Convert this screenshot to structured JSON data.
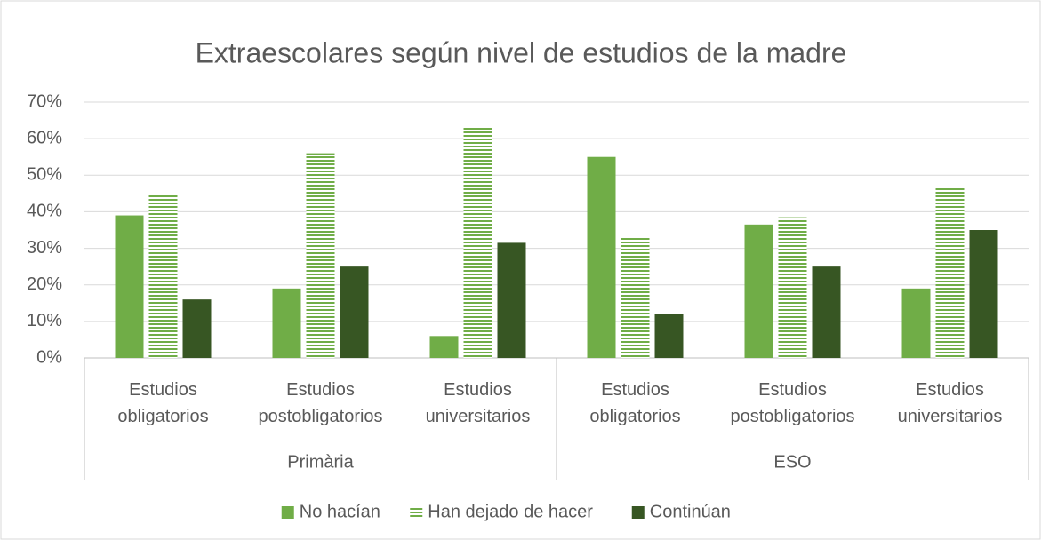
{
  "chart_data": {
    "type": "bar",
    "title": "Extraescolares según nivel de estudios de la madre",
    "categories": [
      "Estudios obligatorios",
      "Estudios postobligatorios",
      "Estudios universitarios",
      "Estudios obligatorios",
      "Estudios postobligatorios",
      "Estudios universitarios"
    ],
    "groups": [
      "Primària",
      "ESO"
    ],
    "series": [
      {
        "name": "No hacían",
        "color": "#70ad47",
        "values": [
          39,
          19,
          6,
          55,
          36.5,
          19
        ]
      },
      {
        "name": "Han dejado de hacer",
        "color": "#70ad47",
        "pattern": "horizontal-stripes",
        "values": [
          44.5,
          56,
          63,
          33,
          38.5,
          46.5
        ]
      },
      {
        "name": "Continúan",
        "color": "#375623",
        "values": [
          16,
          25,
          31.5,
          12,
          25,
          35
        ]
      }
    ],
    "ylim": [
      0,
      70
    ],
    "yticks": [
      {
        "value": 0,
        "label": "0%"
      },
      {
        "value": 10,
        "label": "10%"
      },
      {
        "value": 20,
        "label": "20%"
      },
      {
        "value": 30,
        "label": "30%"
      },
      {
        "value": 40,
        "label": "40%"
      },
      {
        "value": 50,
        "label": "50%"
      },
      {
        "value": 60,
        "label": "60%"
      },
      {
        "value": 70,
        "label": "70%"
      }
    ],
    "grid": true,
    "legend": "bottom"
  }
}
